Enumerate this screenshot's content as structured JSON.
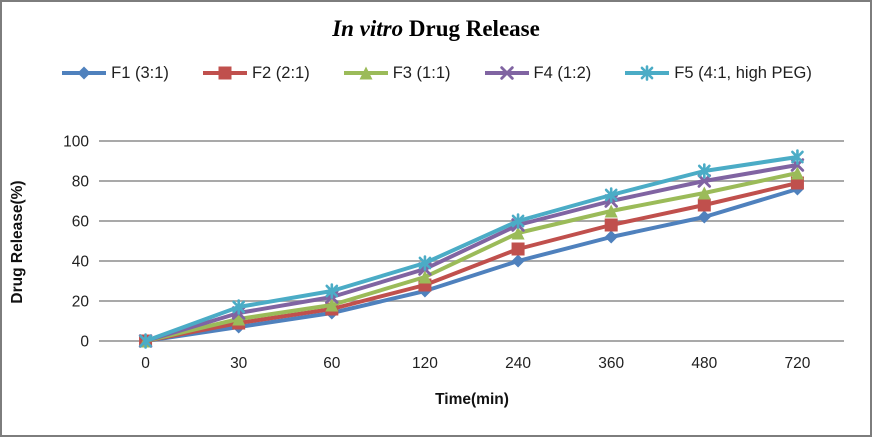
{
  "frame": {
    "background": "#ffffff",
    "border_color": "#7d7d7d"
  },
  "chart_data": {
    "type": "line",
    "title": "In vitro Drug Release",
    "title_parts": {
      "italic": "In vitro",
      "rest": " Drug Release"
    },
    "xlabel": "Time(min)",
    "ylabel": "Drug Release(%)",
    "categories": [
      "0",
      "30",
      "60",
      "120",
      "240",
      "360",
      "480",
      "720"
    ],
    "ylim": [
      0,
      100
    ],
    "yticks": [
      0,
      20,
      40,
      60,
      80,
      100
    ],
    "grid": "horizontal",
    "gridline_color": "#9d9d9d",
    "legend_position": "top",
    "text_color": "#1f1f1f",
    "series": [
      {
        "name": "F1 (3:1)",
        "color": "#4F81BD",
        "marker": "diamond",
        "values": [
          0,
          7,
          14,
          25,
          40,
          52,
          62,
          76
        ]
      },
      {
        "name": "F2 (2:1)",
        "color": "#C0504D",
        "marker": "square",
        "values": [
          0,
          9,
          16,
          28,
          46,
          58,
          68,
          79
        ]
      },
      {
        "name": "F3 (1:1)",
        "color": "#9BBB59",
        "marker": "triangle",
        "values": [
          0,
          11,
          18,
          32,
          54,
          65,
          74,
          84
        ]
      },
      {
        "name": "F4 (1:2)",
        "color": "#8064A2",
        "marker": "x",
        "values": [
          0,
          14,
          22,
          36,
          58,
          70,
          80,
          88
        ]
      },
      {
        "name": "F5 (4:1, high PEG)",
        "color": "#4BACC6",
        "marker": "asterisk",
        "values": [
          0,
          17,
          25,
          39,
          60,
          73,
          85,
          92
        ]
      }
    ]
  }
}
